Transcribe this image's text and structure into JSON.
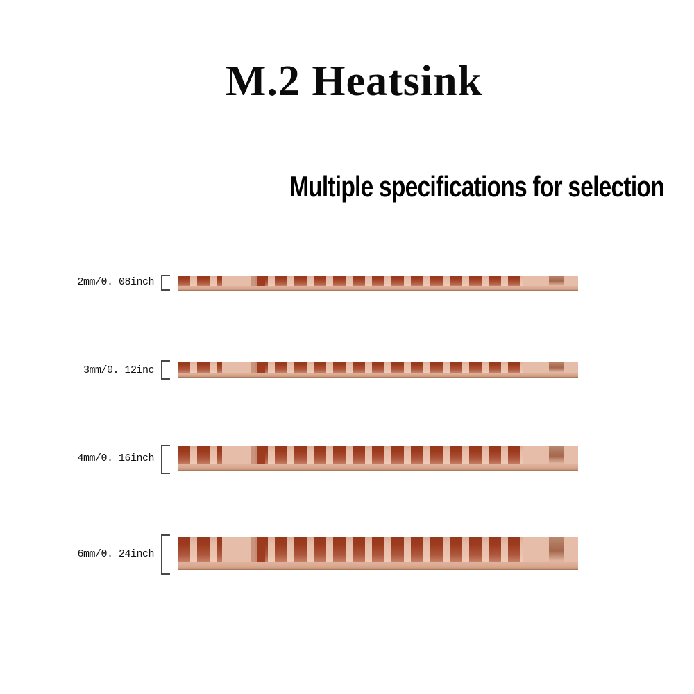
{
  "title": "M.2 Heatsink",
  "subtitle": "Multiple specifications for selection",
  "colors": {
    "background": "#ffffff",
    "text": "#000000",
    "copper_light": "#e6bda9",
    "copper_base": "#e0b29c",
    "slot_dark": "#9c3a1e",
    "bracket": "#474747"
  },
  "products": [
    {
      "label": "2mm/0. 08inch"
    },
    {
      "label": "3mm/0. 12inc"
    },
    {
      "label": "4mm/0. 16inch"
    },
    {
      "label": "6mm/0. 24inch"
    }
  ]
}
